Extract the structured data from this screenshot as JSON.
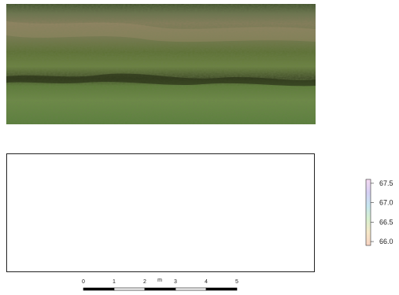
{
  "photo": {
    "icon": "aerial-grass-photo"
  },
  "legend": {
    "ticks": [
      "67.5",
      "67.0",
      "66.5",
      "66.0"
    ],
    "values": [
      67.5,
      67.0,
      66.5,
      66.0
    ],
    "range": [
      65.9,
      67.6
    ],
    "colors": [
      "#f4d9f0",
      "#d6d0f4",
      "#c6e6f0",
      "#d8f0cf",
      "#f6e8c8",
      "#f7d3c2"
    ]
  },
  "scalebar": {
    "ticks": [
      "0",
      "1",
      "2",
      "3",
      "4",
      "5"
    ],
    "unit": "m"
  }
}
